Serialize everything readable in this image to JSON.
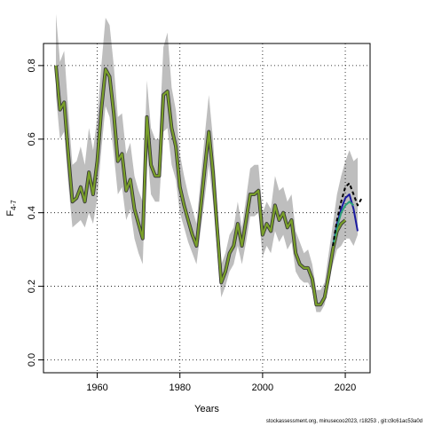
{
  "chart_data": {
    "type": "line",
    "xlabel": "Years",
    "ylabel": "F",
    "ylabel_sub": "4-7",
    "xlim": [
      1947,
      2026
    ],
    "ylim": [
      -0.035,
      0.86
    ],
    "x_ticks": [
      1960,
      1980,
      2000,
      2020
    ],
    "y_ticks": [
      0.0,
      0.2,
      0.4,
      0.6,
      0.8
    ],
    "y_tick_labels": [
      "0.0",
      "0.2",
      "0.4",
      "0.6",
      "0.8"
    ],
    "grid": true,
    "colors": {
      "band": "#bebebe",
      "outline": "#3a3a3a",
      "main_line": "#7aa02a",
      "retro_blue": "#1a1aa0",
      "retro_teal": "#2aa07a",
      "retro_dashed": "#000000"
    },
    "band_lower": [
      {
        "x": 1950,
        "y": 0.72
      },
      {
        "x": 1951,
        "y": 0.6
      },
      {
        "x": 1952,
        "y": 0.62
      },
      {
        "x": 1953,
        "y": 0.48
      },
      {
        "x": 1954,
        "y": 0.36
      },
      {
        "x": 1955,
        "y": 0.37
      },
      {
        "x": 1956,
        "y": 0.38
      },
      {
        "x": 1957,
        "y": 0.36
      },
      {
        "x": 1958,
        "y": 0.4
      },
      {
        "x": 1959,
        "y": 0.37
      },
      {
        "x": 1960,
        "y": 0.44
      },
      {
        "x": 1961,
        "y": 0.57
      },
      {
        "x": 1962,
        "y": 0.69
      },
      {
        "x": 1963,
        "y": 0.66
      },
      {
        "x": 1964,
        "y": 0.56
      },
      {
        "x": 1965,
        "y": 0.45
      },
      {
        "x": 1966,
        "y": 0.47
      },
      {
        "x": 1967,
        "y": 0.38
      },
      {
        "x": 1968,
        "y": 0.41
      },
      {
        "x": 1969,
        "y": 0.33
      },
      {
        "x": 1970,
        "y": 0.29
      },
      {
        "x": 1971,
        "y": 0.26
      },
      {
        "x": 1972,
        "y": 0.58
      },
      {
        "x": 1973,
        "y": 0.45
      },
      {
        "x": 1974,
        "y": 0.43
      },
      {
        "x": 1975,
        "y": 0.43
      },
      {
        "x": 1976,
        "y": 0.62
      },
      {
        "x": 1977,
        "y": 0.63
      },
      {
        "x": 1978,
        "y": 0.53
      },
      {
        "x": 1979,
        "y": 0.49
      },
      {
        "x": 1980,
        "y": 0.4
      },
      {
        "x": 1981,
        "y": 0.36
      },
      {
        "x": 1982,
        "y": 0.32
      },
      {
        "x": 1983,
        "y": 0.29
      },
      {
        "x": 1984,
        "y": 0.26
      },
      {
        "x": 1985,
        "y": 0.35
      },
      {
        "x": 1986,
        "y": 0.44
      },
      {
        "x": 1987,
        "y": 0.53
      },
      {
        "x": 1988,
        "y": 0.43
      },
      {
        "x": 1989,
        "y": 0.3
      },
      {
        "x": 1990,
        "y": 0.17
      },
      {
        "x": 1991,
        "y": 0.2
      },
      {
        "x": 1992,
        "y": 0.24
      },
      {
        "x": 1993,
        "y": 0.26
      },
      {
        "x": 1994,
        "y": 0.31
      },
      {
        "x": 1995,
        "y": 0.26
      },
      {
        "x": 1996,
        "y": 0.32
      },
      {
        "x": 1997,
        "y": 0.39
      },
      {
        "x": 1998,
        "y": 0.39
      },
      {
        "x": 1999,
        "y": 0.4
      },
      {
        "x": 2000,
        "y": 0.28
      },
      {
        "x": 2001,
        "y": 0.31
      },
      {
        "x": 2002,
        "y": 0.29
      },
      {
        "x": 2003,
        "y": 0.35
      },
      {
        "x": 2004,
        "y": 0.32
      },
      {
        "x": 2005,
        "y": 0.34
      },
      {
        "x": 2006,
        "y": 0.3
      },
      {
        "x": 2007,
        "y": 0.32
      },
      {
        "x": 2008,
        "y": 0.24
      },
      {
        "x": 2009,
        "y": 0.22
      },
      {
        "x": 2010,
        "y": 0.21
      },
      {
        "x": 2011,
        "y": 0.21
      },
      {
        "x": 2012,
        "y": 0.19
      },
      {
        "x": 2013,
        "y": 0.13
      },
      {
        "x": 2014,
        "y": 0.13
      },
      {
        "x": 2015,
        "y": 0.15
      },
      {
        "x": 2016,
        "y": 0.21
      },
      {
        "x": 2017,
        "y": 0.26
      },
      {
        "x": 2018,
        "y": 0.3
      },
      {
        "x": 2019,
        "y": 0.31
      },
      {
        "x": 2020,
        "y": 0.33
      },
      {
        "x": 2021,
        "y": 0.33
      },
      {
        "x": 2022,
        "y": 0.31
      },
      {
        "x": 2023,
        "y": 0.34
      }
    ],
    "band_upper": [
      {
        "x": 1950,
        "y": 0.94
      },
      {
        "x": 1951,
        "y": 0.81
      },
      {
        "x": 1952,
        "y": 0.84
      },
      {
        "x": 1953,
        "y": 0.68
      },
      {
        "x": 1954,
        "y": 0.53
      },
      {
        "x": 1955,
        "y": 0.54
      },
      {
        "x": 1956,
        "y": 0.58
      },
      {
        "x": 1957,
        "y": 0.53
      },
      {
        "x": 1958,
        "y": 0.63
      },
      {
        "x": 1959,
        "y": 0.57
      },
      {
        "x": 1960,
        "y": 0.66
      },
      {
        "x": 1961,
        "y": 0.8
      },
      {
        "x": 1962,
        "y": 0.93
      },
      {
        "x": 1963,
        "y": 0.91
      },
      {
        "x": 1964,
        "y": 0.8
      },
      {
        "x": 1965,
        "y": 0.66
      },
      {
        "x": 1966,
        "y": 0.67
      },
      {
        "x": 1967,
        "y": 0.56
      },
      {
        "x": 1968,
        "y": 0.59
      },
      {
        "x": 1969,
        "y": 0.5
      },
      {
        "x": 1970,
        "y": 0.46
      },
      {
        "x": 1971,
        "y": 0.43
      },
      {
        "x": 1972,
        "y": 0.76
      },
      {
        "x": 1973,
        "y": 0.63
      },
      {
        "x": 1974,
        "y": 0.6
      },
      {
        "x": 1975,
        "y": 0.6
      },
      {
        "x": 1976,
        "y": 0.85
      },
      {
        "x": 1977,
        "y": 0.89
      },
      {
        "x": 1978,
        "y": 0.74
      },
      {
        "x": 1979,
        "y": 0.68
      },
      {
        "x": 1980,
        "y": 0.56
      },
      {
        "x": 1981,
        "y": 0.5
      },
      {
        "x": 1982,
        "y": 0.45
      },
      {
        "x": 1983,
        "y": 0.41
      },
      {
        "x": 1984,
        "y": 0.37
      },
      {
        "x": 1985,
        "y": 0.49
      },
      {
        "x": 1986,
        "y": 0.61
      },
      {
        "x": 1987,
        "y": 0.72
      },
      {
        "x": 1988,
        "y": 0.6
      },
      {
        "x": 1989,
        "y": 0.43
      },
      {
        "x": 1990,
        "y": 0.26
      },
      {
        "x": 1991,
        "y": 0.29
      },
      {
        "x": 1992,
        "y": 0.34
      },
      {
        "x": 1993,
        "y": 0.36
      },
      {
        "x": 1994,
        "y": 0.43
      },
      {
        "x": 1995,
        "y": 0.36
      },
      {
        "x": 1996,
        "y": 0.44
      },
      {
        "x": 1997,
        "y": 0.52
      },
      {
        "x": 1998,
        "y": 0.53
      },
      {
        "x": 1999,
        "y": 0.53
      },
      {
        "x": 2000,
        "y": 0.4
      },
      {
        "x": 2001,
        "y": 0.43
      },
      {
        "x": 2002,
        "y": 0.41
      },
      {
        "x": 2003,
        "y": 0.5
      },
      {
        "x": 2004,
        "y": 0.46
      },
      {
        "x": 2005,
        "y": 0.47
      },
      {
        "x": 2006,
        "y": 0.43
      },
      {
        "x": 2007,
        "y": 0.45
      },
      {
        "x": 2008,
        "y": 0.35
      },
      {
        "x": 2009,
        "y": 0.32
      },
      {
        "x": 2010,
        "y": 0.29
      },
      {
        "x": 2011,
        "y": 0.3
      },
      {
        "x": 2012,
        "y": 0.26
      },
      {
        "x": 2013,
        "y": 0.19
      },
      {
        "x": 2014,
        "y": 0.19
      },
      {
        "x": 2015,
        "y": 0.21
      },
      {
        "x": 2016,
        "y": 0.29
      },
      {
        "x": 2017,
        "y": 0.37
      },
      {
        "x": 2018,
        "y": 0.45
      },
      {
        "x": 2019,
        "y": 0.5
      },
      {
        "x": 2020,
        "y": 0.54
      },
      {
        "x": 2021,
        "y": 0.57
      },
      {
        "x": 2022,
        "y": 0.54
      },
      {
        "x": 2023,
        "y": 0.55
      }
    ],
    "series": [
      {
        "color": "#7aa02a",
        "values": [
          {
            "x": 1950,
            "y": 0.8
          },
          {
            "x": 1951,
            "y": 0.68
          },
          {
            "x": 1952,
            "y": 0.7
          },
          {
            "x": 1953,
            "y": 0.56
          },
          {
            "x": 1954,
            "y": 0.43
          },
          {
            "x": 1955,
            "y": 0.44
          },
          {
            "x": 1956,
            "y": 0.47
          },
          {
            "x": 1957,
            "y": 0.43
          },
          {
            "x": 1958,
            "y": 0.51
          },
          {
            "x": 1959,
            "y": 0.45
          },
          {
            "x": 1960,
            "y": 0.54
          },
          {
            "x": 1961,
            "y": 0.68
          },
          {
            "x": 1962,
            "y": 0.79
          },
          {
            "x": 1963,
            "y": 0.77
          },
          {
            "x": 1964,
            "y": 0.67
          },
          {
            "x": 1965,
            "y": 0.54
          },
          {
            "x": 1966,
            "y": 0.56
          },
          {
            "x": 1967,
            "y": 0.46
          },
          {
            "x": 1968,
            "y": 0.49
          },
          {
            "x": 1969,
            "y": 0.41
          },
          {
            "x": 1970,
            "y": 0.37
          },
          {
            "x": 1971,
            "y": 0.33
          },
          {
            "x": 1972,
            "y": 0.66
          },
          {
            "x": 1973,
            "y": 0.53
          },
          {
            "x": 1974,
            "y": 0.5
          },
          {
            "x": 1975,
            "y": 0.5
          },
          {
            "x": 1976,
            "y": 0.72
          },
          {
            "x": 1977,
            "y": 0.73
          },
          {
            "x": 1978,
            "y": 0.63
          },
          {
            "x": 1979,
            "y": 0.58
          },
          {
            "x": 1980,
            "y": 0.47
          },
          {
            "x": 1981,
            "y": 0.42
          },
          {
            "x": 1982,
            "y": 0.38
          },
          {
            "x": 1983,
            "y": 0.34
          },
          {
            "x": 1984,
            "y": 0.31
          },
          {
            "x": 1985,
            "y": 0.41
          },
          {
            "x": 1986,
            "y": 0.52
          },
          {
            "x": 1987,
            "y": 0.62
          },
          {
            "x": 1988,
            "y": 0.51
          },
          {
            "x": 1989,
            "y": 0.36
          },
          {
            "x": 1990,
            "y": 0.21
          },
          {
            "x": 1991,
            "y": 0.24
          },
          {
            "x": 1992,
            "y": 0.29
          },
          {
            "x": 1993,
            "y": 0.31
          },
          {
            "x": 1994,
            "y": 0.37
          },
          {
            "x": 1995,
            "y": 0.31
          },
          {
            "x": 1996,
            "y": 0.38
          },
          {
            "x": 1997,
            "y": 0.45
          },
          {
            "x": 1998,
            "y": 0.45
          },
          {
            "x": 1999,
            "y": 0.46
          },
          {
            "x": 2000,
            "y": 0.34
          },
          {
            "x": 2001,
            "y": 0.37
          },
          {
            "x": 2002,
            "y": 0.35
          },
          {
            "x": 2003,
            "y": 0.42
          },
          {
            "x": 2004,
            "y": 0.38
          },
          {
            "x": 2005,
            "y": 0.4
          },
          {
            "x": 2006,
            "y": 0.36
          },
          {
            "x": 2007,
            "y": 0.38
          },
          {
            "x": 2008,
            "y": 0.29
          },
          {
            "x": 2009,
            "y": 0.26
          },
          {
            "x": 2010,
            "y": 0.25
          },
          {
            "x": 2011,
            "y": 0.25
          },
          {
            "x": 2012,
            "y": 0.22
          },
          {
            "x": 2013,
            "y": 0.15
          },
          {
            "x": 2014,
            "y": 0.15
          },
          {
            "x": 2015,
            "y": 0.17
          },
          {
            "x": 2016,
            "y": 0.23
          },
          {
            "x": 2017,
            "y": 0.3
          },
          {
            "x": 2018,
            "y": 0.35
          },
          {
            "x": 2019,
            "y": 0.37
          },
          {
            "x": 2020,
            "y": 0.38
          }
        ]
      },
      {
        "color": "#1a1aa0",
        "values": [
          {
            "x": 2017,
            "y": 0.31
          },
          {
            "x": 2018,
            "y": 0.37
          },
          {
            "x": 2019,
            "y": 0.41
          },
          {
            "x": 2020,
            "y": 0.44
          },
          {
            "x": 2021,
            "y": 0.45
          },
          {
            "x": 2022,
            "y": 0.41
          },
          {
            "x": 2023,
            "y": 0.35
          }
        ]
      },
      {
        "color": "#2aa07a",
        "values": [
          {
            "x": 2017,
            "y": 0.31
          },
          {
            "x": 2018,
            "y": 0.36
          },
          {
            "x": 2019,
            "y": 0.4
          },
          {
            "x": 2020,
            "y": 0.42
          },
          {
            "x": 2021,
            "y": 0.43
          },
          {
            "x": 2022,
            "y": 0.42
          }
        ]
      },
      {
        "color": "#000000",
        "dashed": true,
        "values": [
          {
            "x": 2017,
            "y": 0.31
          },
          {
            "x": 2018,
            "y": 0.38
          },
          {
            "x": 2019,
            "y": 0.43
          },
          {
            "x": 2020,
            "y": 0.47
          },
          {
            "x": 2021,
            "y": 0.48
          },
          {
            "x": 2022,
            "y": 0.45
          },
          {
            "x": 2023,
            "y": 0.42
          },
          {
            "x": 2024,
            "y": 0.44
          }
        ]
      }
    ]
  },
  "footer": {
    "text": "stockassessment.org, minusecoo2023, r18253 , git:c9c61ac53a0d"
  }
}
